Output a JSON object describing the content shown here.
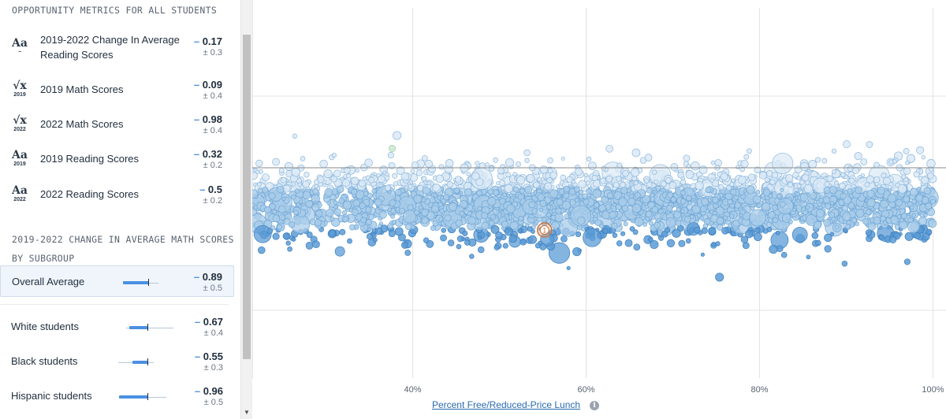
{
  "panel": {
    "section1_title": "OPPORTUNITY METRICS FOR ALL STUDENTS",
    "metrics": [
      {
        "icon": "reading-change-icon",
        "icon_big": "Aa",
        "icon_small": "~",
        "label": "2019-2022 Change In Average Reading Scores",
        "value": "0.17",
        "error": "± 0.3"
      },
      {
        "icon": "math-2019-icon",
        "icon_big": "√x",
        "icon_small": "2019",
        "label": "2019 Math Scores",
        "value": "0.09",
        "error": "± 0.4"
      },
      {
        "icon": "math-2022-icon",
        "icon_big": "√x",
        "icon_small": "2022",
        "label": "2022 Math Scores",
        "value": "0.98",
        "error": "± 0.4"
      },
      {
        "icon": "reading-2019-icon",
        "icon_big": "Aa",
        "icon_small": "2019",
        "label": "2019 Reading Scores",
        "value": "0.32",
        "error": "± 0.2"
      },
      {
        "icon": "reading-2022-icon",
        "icon_big": "Aa",
        "icon_small": "2022",
        "label": "2022 Reading Scores",
        "value": "0.5",
        "error": "± 0.2"
      }
    ],
    "section2_title": "2019-2022 CHANGE IN AVERAGE MATH SCORES BY SUBGROUP",
    "subgroups": [
      {
        "label": "Overall Average",
        "value": "0.89",
        "error": "± 0.5",
        "selected": true
      },
      {
        "label": "White students",
        "value": "0.67",
        "error": "± 0.4",
        "selected": false
      },
      {
        "label": "Black students",
        "value": "0.55",
        "error": "± 0.3",
        "selected": false
      },
      {
        "label": "Hispanic students",
        "value": "0.96",
        "error": "± 0.5",
        "selected": false
      }
    ],
    "dash": "–"
  },
  "chart_data": {
    "type": "scatter",
    "xlabel": "Percent Free/Reduced-Price Lunch",
    "x_ticks": [
      "40%",
      "60%",
      "80%",
      "100%"
    ],
    "x_tick_values": [
      40,
      60,
      80,
      100
    ],
    "xlim": [
      21.5,
      101.5
    ],
    "grid": true,
    "reference_line": "horizontal",
    "highlighted_point": {
      "label": "1",
      "x": 55.2
    },
    "point_count_estimate": 2800,
    "series": [
      {
        "color_light": "#dbe9f6",
        "color_mid": "#a9cce9",
        "color_dark": "#5b9bd5",
        "color_green": "#c9e7cf"
      }
    ],
    "colors": {
      "highlight": "#e8a679",
      "highlight_stroke": "#c9743f",
      "gridline": "#e3e3e3",
      "reference": "#8a8a8a"
    }
  },
  "info_glyph": "i"
}
